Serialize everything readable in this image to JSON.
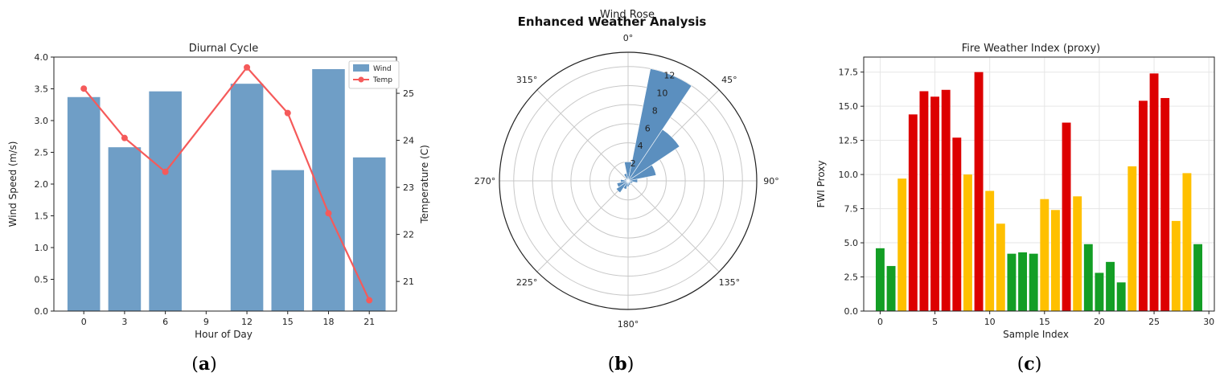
{
  "figure": {
    "suptitle": "Enhanced Weather Analysis",
    "panel_labels": [
      {
        "open": "(",
        "letter": "a",
        "close": ")"
      },
      {
        "open": "(",
        "letter": "b",
        "close": ")"
      },
      {
        "open": "(",
        "letter": "c",
        "close": ")"
      }
    ]
  },
  "colors": {
    "wind_bar": "#6f9ec6",
    "temp_line": "#f55a5a",
    "rose_bar": "#5b8fbf",
    "fwi_low": "#139e25",
    "fwi_mid": "#ffc000",
    "fwi_high": "#dd0000"
  },
  "chart_data": [
    {
      "type": "bar",
      "title": "Diurnal Cycle",
      "xlabel": "Hour of Day",
      "ylabel": "Wind Speed (m/s)",
      "y2label": "Temperature (C)",
      "categories": [
        "0",
        "3",
        "6",
        "9",
        "12",
        "15",
        "18",
        "21"
      ],
      "x": [
        0,
        3,
        6,
        9,
        12,
        15,
        18,
        21
      ],
      "xlim": [
        -2.2,
        23.0
      ],
      "ylim": [
        0,
        4.0
      ],
      "y2lim": [
        20.37,
        25.77
      ],
      "yticks": [
        "0.0",
        "0.5",
        "1.0",
        "1.5",
        "2.0",
        "2.5",
        "3.0",
        "3.5",
        "4.0"
      ],
      "y2ticks": [
        "21",
        "22",
        "23",
        "24",
        "25"
      ],
      "legend": "top-right",
      "grid": false,
      "series": [
        {
          "name": "Wind",
          "kind": "bar",
          "values": [
            3.37,
            2.58,
            3.46,
            null,
            3.58,
            2.22,
            3.81,
            2.42
          ]
        },
        {
          "name": "Temp",
          "kind": "line",
          "axis": "right",
          "values": [
            25.1,
            24.05,
            23.33,
            null,
            25.55,
            24.58,
            22.45,
            20.6
          ]
        }
      ]
    },
    {
      "type": "bar",
      "subtype": "polar",
      "title": "Wind Rose",
      "theta_labels": [
        "0°",
        "45°",
        "90°",
        "135°",
        "180°",
        "225°",
        "270°",
        "315°"
      ],
      "r_ticks": [
        "2",
        "4",
        "6",
        "8",
        "10",
        "12"
      ],
      "rlim": [
        0,
        13.5
      ],
      "sector_width_deg": 22.5,
      "grid": true,
      "directions_deg": [
        0,
        22.5,
        45,
        67.5,
        90,
        112.5,
        135,
        157.5,
        180,
        202.5,
        225,
        247.5,
        270,
        292.5,
        315,
        337.5
      ],
      "values": [
        2.0,
        12.0,
        6.5,
        3.0,
        1.0,
        0.5,
        0.4,
        0.5,
        0.6,
        0.9,
        1.5,
        1.2,
        0.8,
        0.4,
        0.3,
        0.8
      ]
    },
    {
      "type": "bar",
      "title": "Fire Weather Index (proxy)",
      "xlabel": "Sample Index",
      "ylabel": "FWI Proxy",
      "xticks": [
        "0",
        "5",
        "10",
        "15",
        "20",
        "25",
        "30"
      ],
      "yticks": [
        "0.0",
        "2.5",
        "5.0",
        "7.5",
        "10.0",
        "12.5",
        "15.0",
        "17.5"
      ],
      "xlim": [
        -1.5,
        30.5
      ],
      "ylim": [
        0,
        18.6
      ],
      "grid": true,
      "x": [
        0,
        1,
        2,
        3,
        4,
        5,
        6,
        7,
        8,
        9,
        10,
        11,
        12,
        13,
        14,
        15,
        16,
        17,
        18,
        19,
        20,
        21,
        22,
        23,
        24,
        25,
        26,
        27,
        28,
        29
      ],
      "values": [
        4.6,
        3.3,
        9.7,
        14.4,
        16.1,
        15.7,
        16.2,
        12.7,
        10.0,
        17.5,
        8.8,
        6.4,
        4.2,
        4.3,
        4.2,
        8.2,
        7.4,
        13.8,
        8.4,
        4.9,
        2.8,
        3.6,
        2.1,
        10.6,
        15.4,
        17.4,
        15.6,
        6.6,
        10.1,
        4.9
      ],
      "levels": [
        "low",
        "low",
        "mid",
        "high",
        "high",
        "high",
        "high",
        "high",
        "mid",
        "high",
        "mid",
        "mid",
        "low",
        "low",
        "low",
        "mid",
        "mid",
        "high",
        "mid",
        "low",
        "low",
        "low",
        "low",
        "mid",
        "high",
        "high",
        "high",
        "mid",
        "mid",
        "low"
      ]
    }
  ]
}
